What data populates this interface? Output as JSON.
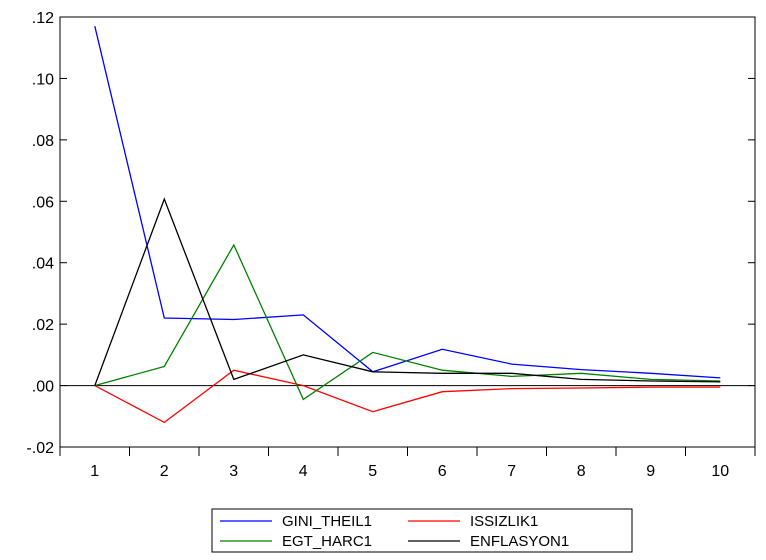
{
  "chart_data": {
    "type": "line",
    "title": "",
    "xlabel": "",
    "ylabel": "",
    "x": [
      1,
      2,
      3,
      4,
      5,
      6,
      7,
      8,
      9,
      10
    ],
    "xlim": [
      0.5,
      10.5
    ],
    "ylim": [
      -0.02,
      0.12
    ],
    "x_tick_labels": [
      "1",
      "2",
      "3",
      "4",
      "5",
      "6",
      "7",
      "8",
      "9",
      "10"
    ],
    "y_ticks": [
      -0.02,
      0.0,
      0.02,
      0.04,
      0.06,
      0.08,
      0.1,
      0.12
    ],
    "y_tick_labels": [
      "-.02",
      ".00",
      ".02",
      ".04",
      ".06",
      ".08",
      ".10",
      ".12"
    ],
    "grid": false,
    "zero_line": true,
    "legend_position": "bottom",
    "series": [
      {
        "name": "GINI_THEIL1",
        "color": "#0000ff",
        "values": [
          0.117,
          0.022,
          0.0215,
          0.023,
          0.0045,
          0.0118,
          0.007,
          0.0052,
          0.004,
          0.0025
        ]
      },
      {
        "name": "ISSIZLIK1",
        "color": "#ff0000",
        "values": [
          0.0,
          -0.012,
          0.005,
          0.0,
          -0.0085,
          -0.002,
          -0.001,
          -0.0008,
          -0.0005,
          -0.0005
        ]
      },
      {
        "name": "EGT_HARC1",
        "color": "#008000",
        "values": [
          0.0,
          0.0062,
          0.0458,
          -0.0045,
          0.0108,
          0.005,
          0.003,
          0.004,
          0.002,
          0.0015
        ]
      },
      {
        "name": "ENFLASYON1",
        "color": "#000000",
        "values": [
          0.0,
          0.0607,
          0.002,
          0.01,
          0.0045,
          0.004,
          0.004,
          0.002,
          0.0015,
          0.0012
        ]
      }
    ]
  }
}
